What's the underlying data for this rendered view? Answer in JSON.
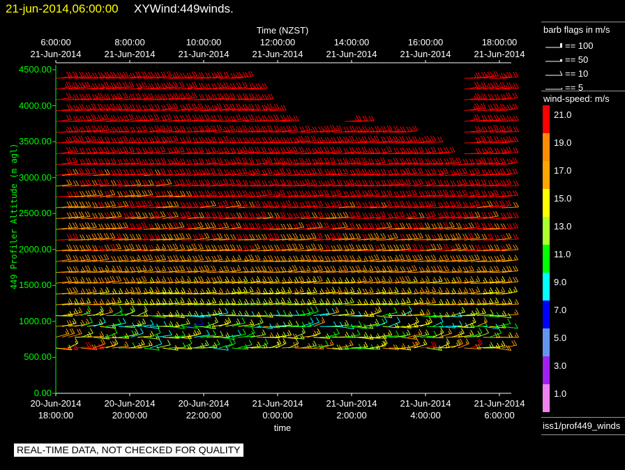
{
  "header": {
    "date": "21-jun-2014,06:00:00",
    "title": "XYWind:449winds."
  },
  "top_axis": {
    "title": "Time (NZST)",
    "ticks": [
      {
        "time": "6:00:00",
        "date": "21-Jun-2014"
      },
      {
        "time": "8:00:00",
        "date": "21-Jun-2014"
      },
      {
        "time": "10:00:00",
        "date": "21-Jun-2014"
      },
      {
        "time": "12:00:00",
        "date": "21-Jun-2014"
      },
      {
        "time": "14:00:00",
        "date": "21-Jun-2014"
      },
      {
        "time": "16:00:00",
        "date": "21-Jun-2014"
      },
      {
        "time": "18:00:00",
        "date": "21-Jun-2014"
      }
    ]
  },
  "bottom_axis": {
    "title": "time",
    "ticks": [
      {
        "date": "20-Jun-2014",
        "time": "18:00:00"
      },
      {
        "date": "20-Jun-2014",
        "time": "20:00:00"
      },
      {
        "date": "20-Jun-2014",
        "time": "22:00:00"
      },
      {
        "date": "21-Jun-2014",
        "time": "0:00:00"
      },
      {
        "date": "21-Jun-2014",
        "time": "2:00:00"
      },
      {
        "date": "21-Jun-2014",
        "time": "4:00:00"
      },
      {
        "date": "21-Jun-2014",
        "time": "6:00:00"
      }
    ]
  },
  "notice": "REAL-TIME DATA, NOT CHECKED FOR QUALITY",
  "legend": {
    "barb_title": "barb flags in m/s",
    "barbs": [
      {
        "label": "== 100",
        "value": 100
      },
      {
        "label": "== 50",
        "value": 50
      },
      {
        "label": "== 10",
        "value": 10
      },
      {
        "label": "== 5",
        "value": 5
      }
    ],
    "speed_title": "wind-speed: m/s",
    "source": "iss1/prof449_winds"
  },
  "chart_data": {
    "type": "wind-barb",
    "title": "XYWind:449winds.",
    "xlabel": "time",
    "x2label": "Time (NZST)",
    "ylabel": "449 Profiler Altitude (m agl)",
    "xlim_hours_since_20jun_18utc": [
      0,
      12.3
    ],
    "ylim": [
      0,
      4500
    ],
    "yticks": [
      "0.00",
      "500.00",
      "1000.00",
      "1500.00",
      "2000.00",
      "2500.00",
      "3000.00",
      "3500.00",
      "4000.00",
      "4500.00"
    ],
    "grid": false,
    "colorbar": {
      "values": [
        "21.0",
        "19.0",
        "17.0",
        "15.0",
        "13.0",
        "11.0",
        "9.0",
        "7.0",
        "5.0",
        "3.0",
        "1.0"
      ],
      "colors": [
        "#ff0000",
        "#ff8c00",
        "#ffa500",
        "#ffff00",
        "#adff2f",
        "#00ff00",
        "#00ffff",
        "#0000ff",
        "#6495ed",
        "#a020f0",
        "#ee82ee"
      ]
    },
    "sample_interval_hours": 0.17,
    "level_spacing_m": 150,
    "lowest_level_m": 630,
    "direction_deg": 255,
    "data_ceiling": {
      "hours": [
        0,
        4,
        5,
        6,
        7,
        8,
        9,
        10,
        10.8,
        11,
        12.3
      ],
      "altitude_m": [
        4500,
        4500,
        4400,
        3800,
        3700,
        3800,
        3700,
        3500,
        3300,
        4500,
        4500
      ]
    },
    "speed_grid": {
      "hours": [
        0,
        2,
        4,
        6,
        8,
        10,
        12
      ],
      "altitudes_m": [
        600,
        900,
        1000,
        1300,
        1600,
        2000,
        2500,
        3000,
        4500
      ],
      "speeds_ms": [
        [
          20,
          17,
          15,
          17,
          18,
          19,
          18,
          21,
          23
        ],
        [
          13,
          11,
          12,
          16,
          17,
          19,
          20,
          21,
          23
        ],
        [
          13,
          11,
          11,
          15,
          17,
          19,
          21,
          22,
          23
        ],
        [
          15,
          13,
          12,
          15,
          17,
          19,
          21,
          22,
          23
        ],
        [
          16,
          12,
          12,
          16,
          17,
          19,
          21,
          22,
          23
        ],
        [
          17,
          12,
          13,
          16,
          17,
          19,
          21,
          22,
          23
        ],
        [
          18,
          12,
          13,
          16,
          17,
          20,
          21,
          22,
          23
        ]
      ]
    }
  }
}
